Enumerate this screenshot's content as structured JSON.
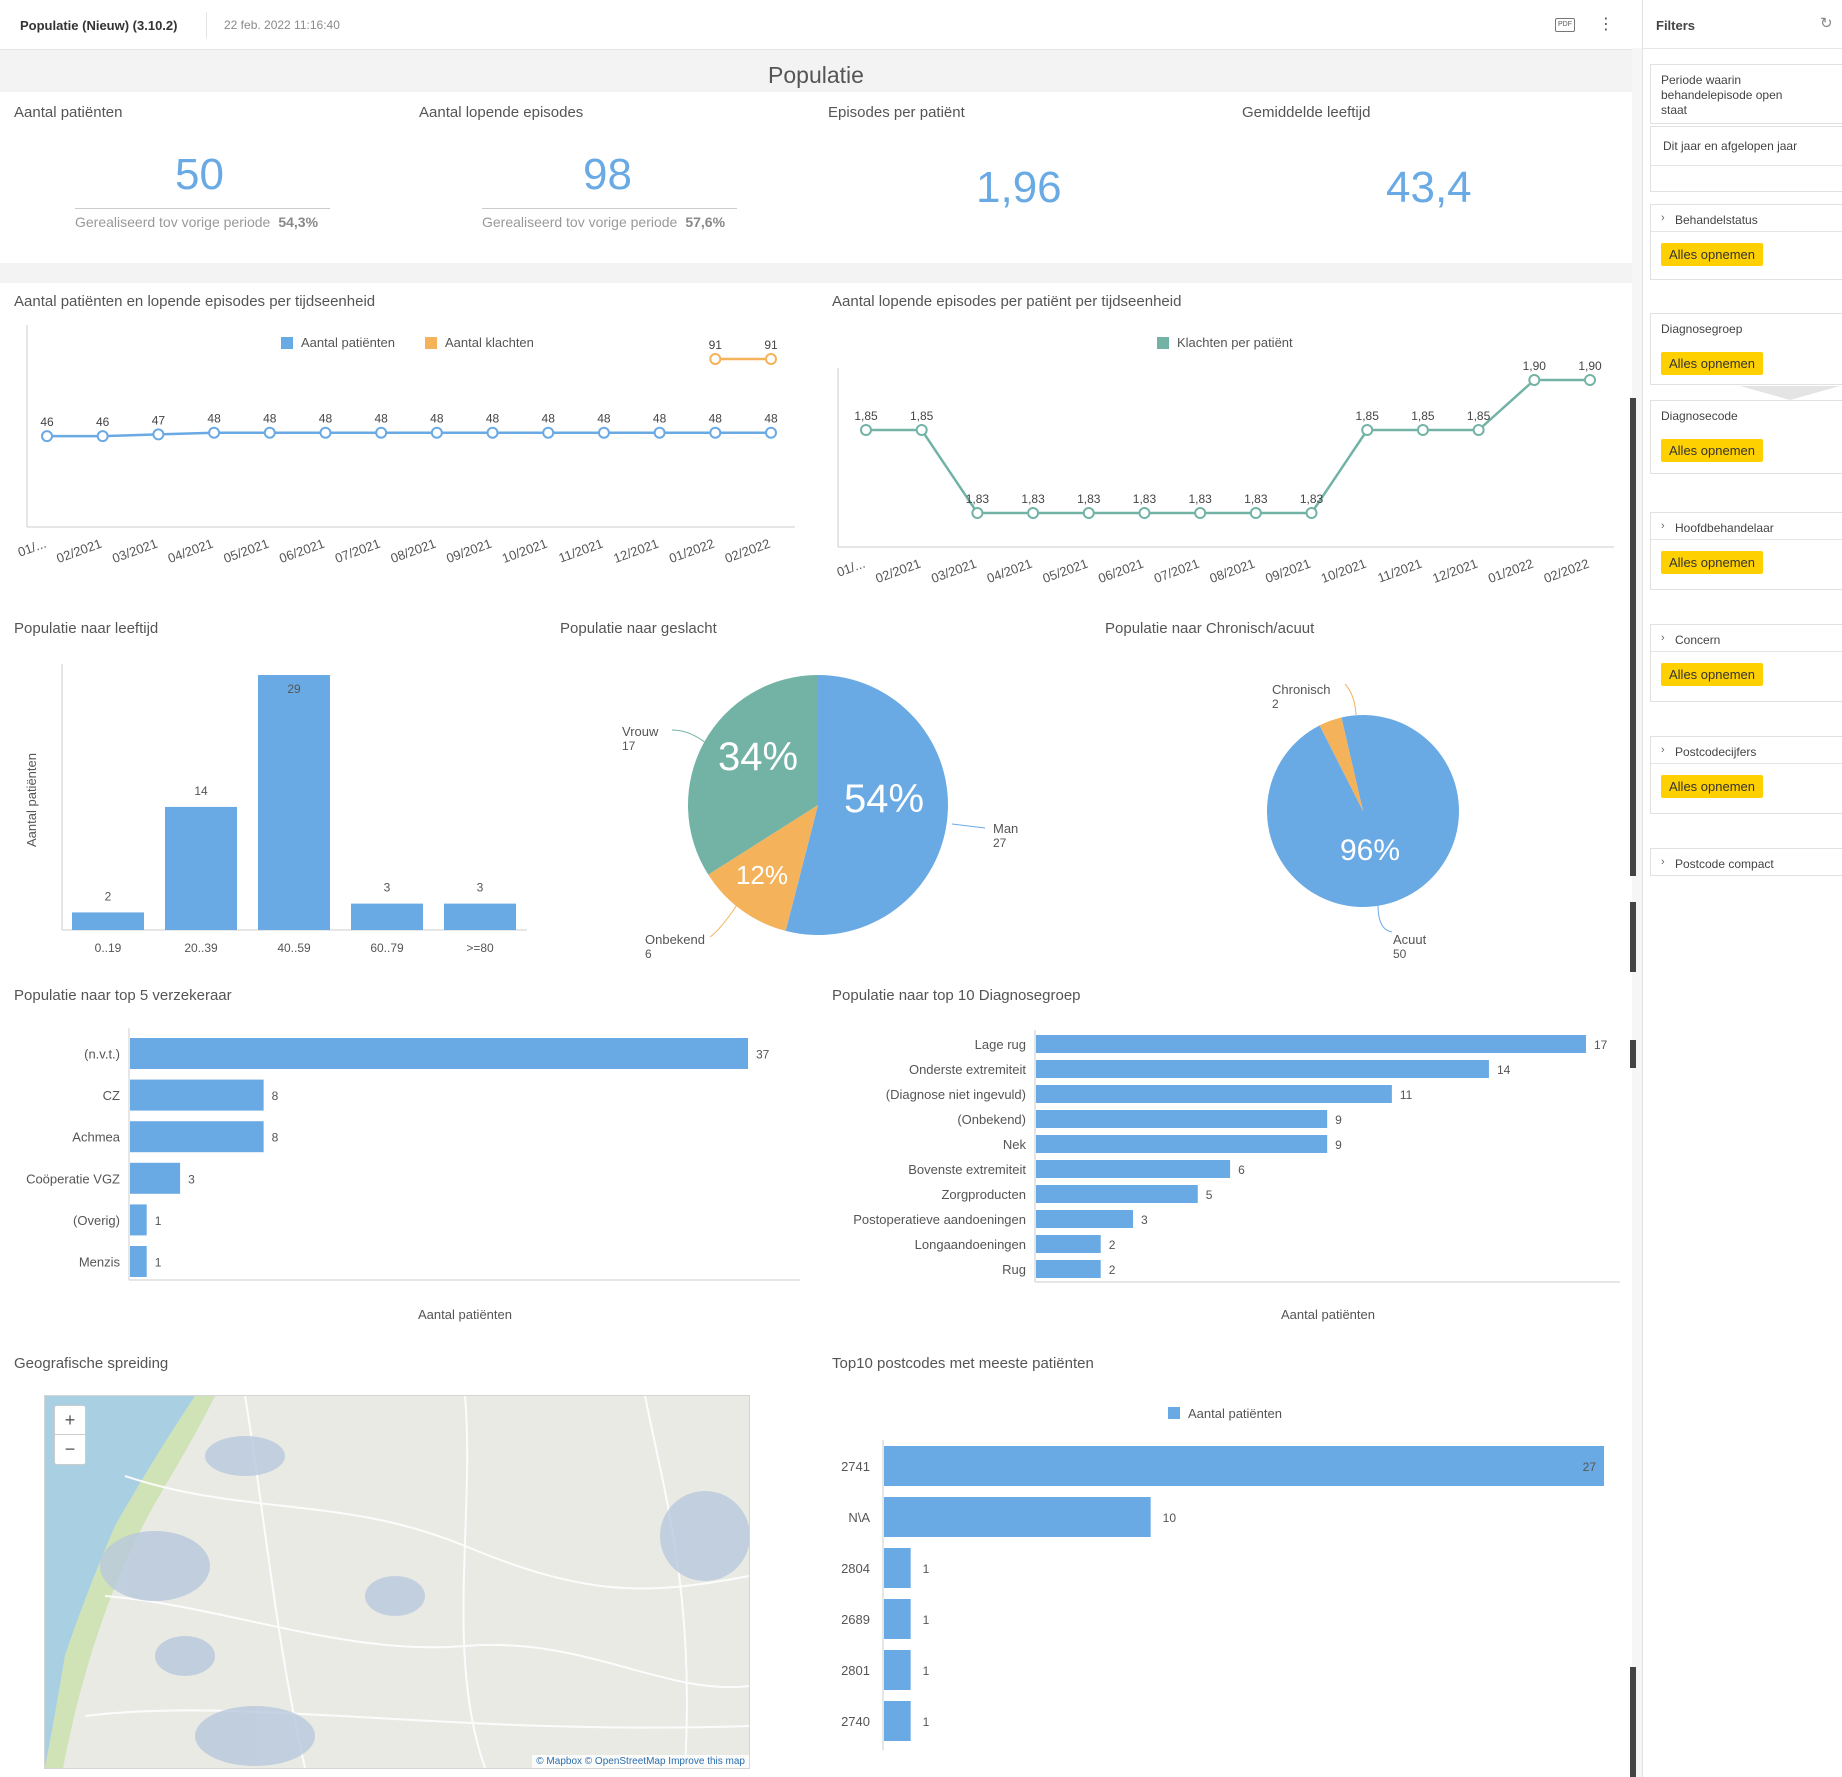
{
  "header": {
    "title": "Populatie (Nieuw) (3.10.2)",
    "date": "22 feb. 2022 11:16:40",
    "pdf_label": "PDF"
  },
  "page_title": "Populatie",
  "kpis": [
    {
      "label": "Aantal patiënten",
      "value": "50",
      "sub_label": "Gerealiseerd tov vorige periode",
      "sub_value": "54,3%"
    },
    {
      "label": "Aantal lopende episodes",
      "value": "98",
      "sub_label": "Gerealiseerd tov vorige periode",
      "sub_value": "57,6%"
    },
    {
      "label": "Episodes per patiënt",
      "value": "1,96"
    },
    {
      "label": "Gemiddelde leeftijd",
      "value": "43,4"
    }
  ],
  "sections": {
    "line1": "Aantal patiënten en lopende episodes per tijdseenheid",
    "line2": "Aantal lopende episodes per patiënt per tijdseenheid",
    "age": "Populatie naar leeftijd",
    "gender": "Populatie naar geslacht",
    "chronic": "Populatie naar Chronisch/acuut",
    "insurer": "Populatie naar top 5 verzekeraar",
    "diag": "Populatie naar top 10 Diagnosegroep",
    "geo": "Geografische spreiding",
    "postcode": "Top10 postcodes met meeste patiënten"
  },
  "map": {
    "zoom_in": "+",
    "zoom_out": "−",
    "attribution": "© Mapbox © OpenStreetMap Improve this map"
  },
  "filters": {
    "title": "Filters",
    "period_label": "Periode waarin behandelepisode open staat",
    "period_value": "Dit jaar en afgelopen jaar",
    "groups": [
      {
        "label": "Behandelstatus",
        "button": "Alles opnemen"
      },
      {
        "label": "Diagnosegroep",
        "button": "Alles opnemen"
      },
      {
        "label": "Diagnosecode",
        "button": "Alles opnemen"
      },
      {
        "label": "Hoofdbehandelaar",
        "button": "Alles opnemen"
      },
      {
        "label": "Concern",
        "button": "Alles opnemen"
      },
      {
        "label": "Postcodecijfers",
        "button": "Alles opnemen"
      },
      {
        "label": "Postcode compact"
      }
    ]
  },
  "chart_data": [
    {
      "type": "line",
      "id": "line1",
      "title": "Aantal patiënten en lopende episodes per tijdseenheid",
      "categories": [
        "01/...",
        "02/2021",
        "03/2021",
        "04/2021",
        "05/2021",
        "06/2021",
        "07/2021",
        "08/2021",
        "09/2021",
        "10/2021",
        "11/2021",
        "12/2021",
        "01/2022",
        "02/2022"
      ],
      "series": [
        {
          "name": "Aantal patiënten",
          "color": "#6aaae4",
          "values": [
            46,
            46,
            47,
            48,
            48,
            48,
            48,
            48,
            48,
            48,
            48,
            48,
            48,
            48
          ]
        },
        {
          "name": "Aantal klachten",
          "color": "#f4b25b",
          "values": [
            null,
            null,
            null,
            null,
            null,
            null,
            null,
            null,
            null,
            null,
            null,
            null,
            91,
            91
          ]
        }
      ],
      "legend": "top"
    },
    {
      "type": "line",
      "id": "line2",
      "title": "Aantal lopende episodes per patiënt per tijdseenheid",
      "categories": [
        "01/...",
        "02/2021",
        "03/2021",
        "04/2021",
        "05/2021",
        "06/2021",
        "07/2021",
        "08/2021",
        "09/2021",
        "10/2021",
        "11/2021",
        "12/2021",
        "01/2022",
        "02/2022"
      ],
      "series": [
        {
          "name": "Klachten per patiënt",
          "color": "#72b3a6",
          "values": [
            1.85,
            1.85,
            1.83,
            1.83,
            1.83,
            1.83,
            1.83,
            1.83,
            1.83,
            1.85,
            1.85,
            1.85,
            1.9,
            1.9
          ]
        }
      ],
      "labels": [
        "1,85",
        "1,85",
        "1,83",
        "1,83",
        "1,83",
        "1,83",
        "1,83",
        "1,83",
        "1,83",
        "1,85",
        "1,85",
        "1,85",
        "1,90",
        "1,90"
      ],
      "legend": "top"
    },
    {
      "type": "bar",
      "id": "age",
      "title": "Populatie naar leeftijd",
      "ylabel": "Aantal patiënten",
      "categories": [
        "0..19",
        "20..39",
        "40..59",
        "60..79",
        ">=80"
      ],
      "values": [
        2,
        14,
        29,
        3,
        3
      ]
    },
    {
      "type": "pie",
      "id": "gender",
      "title": "Populatie naar geslacht",
      "slices": [
        {
          "label": "Man",
          "value": 27,
          "pct": "54%",
          "color": "#6aaae4"
        },
        {
          "label": "Onbekend",
          "value": 6,
          "pct": "12%",
          "color": "#f4b25b"
        },
        {
          "label": "Vrouw",
          "value": 17,
          "pct": "34%",
          "color": "#72b3a6"
        }
      ]
    },
    {
      "type": "pie",
      "id": "chronic",
      "title": "Populatie naar Chronisch/acuut",
      "slices": [
        {
          "label": "Acuut",
          "value": 50,
          "pct": "96%",
          "color": "#6aaae4"
        },
        {
          "label": "Chronisch",
          "value": 2,
          "pct": "",
          "color": "#f4b25b"
        }
      ]
    },
    {
      "type": "bar",
      "orientation": "horizontal",
      "id": "insurer",
      "title": "Populatie naar top 5 verzekeraar",
      "xlabel": "Aantal patiënten",
      "categories": [
        "(n.v.t.)",
        "CZ",
        "Achmea",
        "Coöperatie VGZ",
        "(Overig)",
        "Menzis"
      ],
      "values": [
        37,
        8,
        8,
        3,
        1,
        1
      ]
    },
    {
      "type": "bar",
      "orientation": "horizontal",
      "id": "diag",
      "title": "Populatie naar top 10 Diagnosegroep",
      "xlabel": "Aantal patiënten",
      "categories": [
        "Lage rug",
        "Onderste extremiteit",
        "(Diagnose niet ingevuld)",
        "(Onbekend)",
        "Nek",
        "Bovenste extremiteit",
        "Zorgproducten",
        "Postoperatieve aandoeningen",
        "Longaandoeningen",
        "Rug"
      ],
      "values": [
        17,
        14,
        11,
        9,
        9,
        6,
        5,
        3,
        2,
        2
      ]
    },
    {
      "type": "bar",
      "orientation": "horizontal",
      "id": "postcode",
      "title": "Top10 postcodes met meeste patiënten",
      "series_name": "Aantal patiënten",
      "categories": [
        "2741",
        "N\\A",
        "2804",
        "2689",
        "2801",
        "2740"
      ],
      "values": [
        27,
        10,
        1,
        1,
        1,
        1
      ]
    }
  ]
}
